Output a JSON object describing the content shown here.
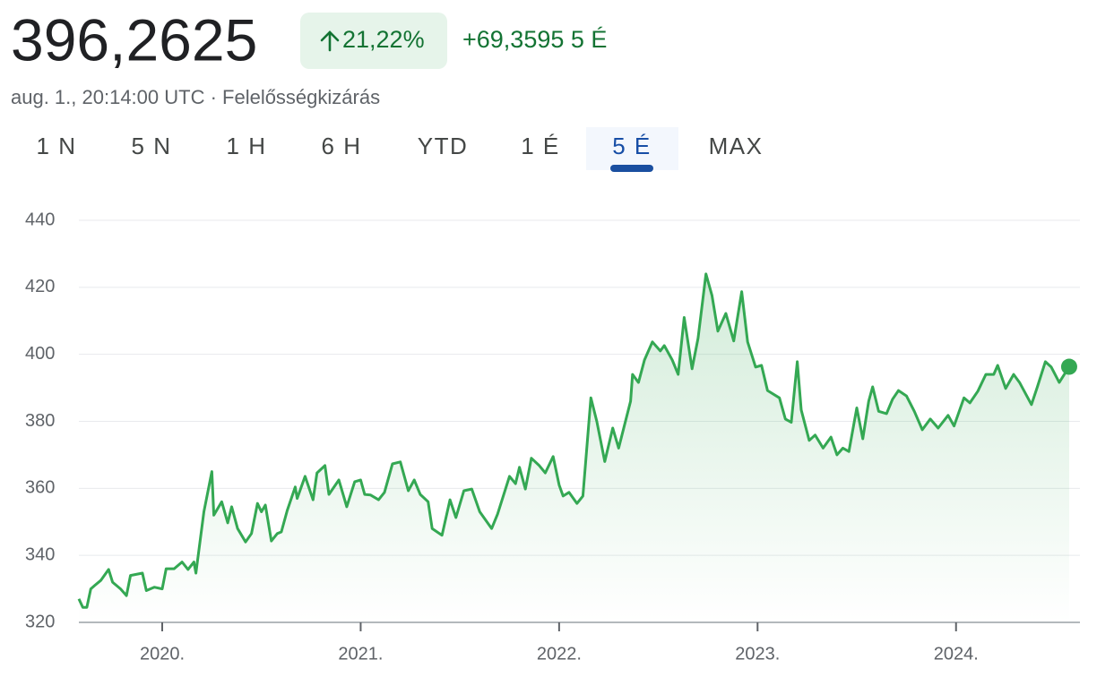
{
  "header": {
    "price": "396,2625",
    "change_percent": "21,22%",
    "change_abs": "+69,3595 5 É",
    "timestamp": "aug. 1., 20:14:00 UTC · Felelősségkizárás"
  },
  "tabs": [
    "1 N",
    "5 N",
    "1 H",
    "6 H",
    "YTD",
    "1 É",
    "5 É",
    "MAX"
  ],
  "selected_tab": 6,
  "chart_data": {
    "type": "line",
    "color": "#34a853",
    "x": [
      2019.58,
      2019.6,
      2019.62,
      2019.64,
      2019.66,
      2019.69,
      2019.73,
      2019.75,
      2019.79,
      2019.82,
      2019.84,
      2019.9,
      2019.92,
      2019.96,
      2020.0,
      2020.02,
      2020.06,
      2020.1,
      2020.13,
      2020.16,
      2020.17,
      2020.21,
      2020.25,
      2020.26,
      2020.3,
      2020.33,
      2020.35,
      2020.38,
      2020.42,
      2020.45,
      2020.48,
      2020.5,
      2020.52,
      2020.55,
      2020.58,
      2020.6,
      2020.63,
      2020.67,
      2020.68,
      2020.72,
      2020.76,
      2020.78,
      2020.82,
      2020.84,
      2020.89,
      2020.93,
      2020.97,
      2021.0,
      2021.02,
      2021.05,
      2021.09,
      2021.12,
      2021.16,
      2021.2,
      2021.24,
      2021.27,
      2021.3,
      2021.34,
      2021.36,
      2021.41,
      2021.45,
      2021.48,
      2021.52,
      2021.56,
      2021.6,
      2021.66,
      2021.69,
      2021.75,
      2021.78,
      2021.8,
      2021.83,
      2021.86,
      2021.9,
      2021.93,
      2021.97,
      2022.0,
      2022.02,
      2022.05,
      2022.09,
      2022.12,
      2022.16,
      2022.19,
      2022.23,
      2022.27,
      2022.3,
      2022.36,
      2022.37,
      2022.4,
      2022.43,
      2022.47,
      2022.51,
      2022.53,
      2022.57,
      2022.6,
      2022.63,
      2022.67,
      2022.7,
      2022.74,
      2022.77,
      2022.8,
      2022.84,
      2022.88,
      2022.92,
      2022.95,
      2022.99,
      2023.02,
      2023.05,
      2023.11,
      2023.14,
      2023.17,
      2023.2,
      2023.22,
      2023.26,
      2023.29,
      2023.33,
      2023.37,
      2023.4,
      2023.43,
      2023.46,
      2023.5,
      2023.53,
      2023.56,
      2023.58,
      2023.61,
      2023.65,
      2023.68,
      2023.71,
      2023.75,
      2023.79,
      2023.83,
      2023.87,
      2023.91,
      2023.96,
      2023.99,
      2024.04,
      2024.07,
      2024.11,
      2024.15,
      2024.19,
      2024.21,
      2024.25,
      2024.29,
      2024.32,
      2024.38,
      2024.41,
      2024.45,
      2024.48,
      2024.52,
      2024.57
    ],
    "values": [
      327,
      324.5,
      324.5,
      330,
      331,
      332.5,
      335.8,
      332,
      330,
      328,
      334,
      334.7,
      329.5,
      330.5,
      330,
      336,
      336,
      338,
      335.8,
      338,
      334.7,
      353,
      365,
      352,
      356,
      349.7,
      354.5,
      348,
      344,
      346.5,
      355.5,
      353,
      355,
      344.3,
      346.5,
      347,
      353.4,
      360.4,
      357,
      363.6,
      356.6,
      364.6,
      366.8,
      358.2,
      362.5,
      354.5,
      362,
      362.5,
      358.2,
      358,
      356.6,
      358.8,
      367.3,
      367.9,
      359.3,
      362.5,
      358.2,
      356,
      348,
      346,
      356.6,
      351.3,
      359.3,
      359.8,
      353,
      348,
      352.3,
      363.6,
      361.4,
      366.3,
      359.8,
      369,
      366.8,
      364.6,
      369.5,
      361,
      357.7,
      358.8,
      355.5,
      357.7,
      387,
      380,
      368,
      378,
      372,
      386,
      394,
      391.6,
      398.3,
      403.7,
      401,
      402.6,
      398.3,
      394,
      411,
      395.7,
      404.8,
      424,
      417.6,
      406.9,
      412.2,
      404,
      418.7,
      403.7,
      396.2,
      396.7,
      389.2,
      387,
      380.7,
      379.7,
      397.8,
      383.4,
      374.3,
      375.9,
      372,
      375.3,
      370,
      372,
      371,
      384,
      374.8,
      386,
      390.3,
      383,
      382.3,
      386.6,
      389.2,
      387.6,
      383,
      377.5,
      380.7,
      378,
      381.8,
      378.6,
      387,
      385.5,
      389,
      394,
      394,
      396.7,
      389.8,
      394,
      391.6,
      385,
      390.3,
      397.8,
      396.2,
      391.6,
      396.3
    ],
    "xlim": [
      2019.58,
      2024.6
    ],
    "ylim": [
      320,
      440
    ],
    "yticks": [
      320,
      340,
      360,
      380,
      400,
      420,
      440
    ],
    "xticks": [
      {
        "value": 2020,
        "label": "2020."
      },
      {
        "value": 2021,
        "label": "2021."
      },
      {
        "value": 2022,
        "label": "2022."
      },
      {
        "value": 2023,
        "label": "2023."
      },
      {
        "value": 2024,
        "label": "2024."
      }
    ],
    "grid": true
  }
}
